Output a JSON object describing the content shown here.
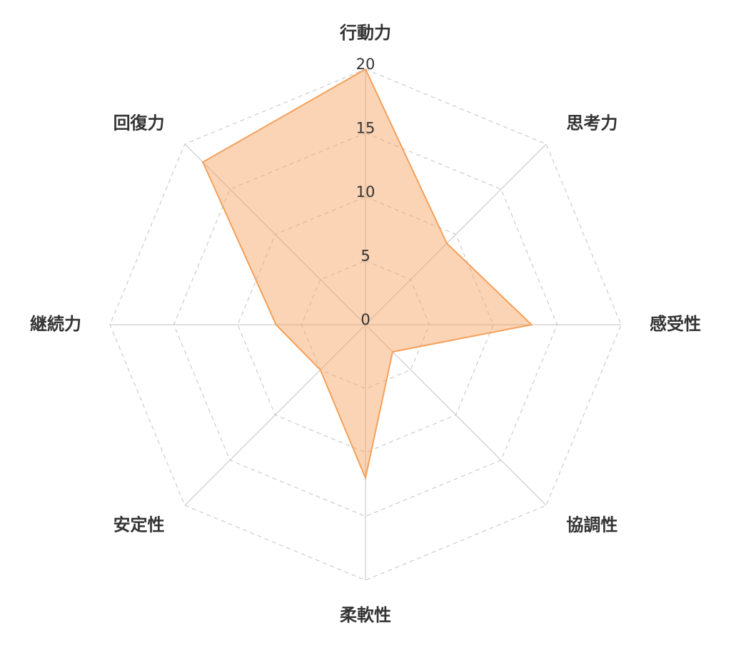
{
  "chart_data": {
    "type": "radar",
    "categories": [
      "行動力",
      "思考力",
      "感受性",
      "協調性",
      "柔軟性",
      "安定性",
      "継続力",
      "回復力"
    ],
    "series": [
      {
        "color": "#f5a05a",
        "values": [
          20,
          9,
          13,
          3,
          12,
          5,
          7,
          18
        ]
      }
    ],
    "ylim": [
      0,
      20
    ],
    "yticks": [
      0,
      5,
      10,
      15,
      20
    ],
    "grid": true
  }
}
